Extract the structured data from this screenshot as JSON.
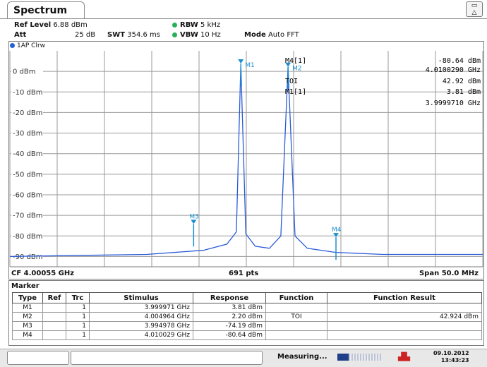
{
  "tab_title": "Spectrum",
  "corner_button_label": "△",
  "header": {
    "ref_level_label": "Ref Level",
    "ref_level_value": "6.88 dBm",
    "att_label": "Att",
    "att_value": "25 dB",
    "swt_label": "SWT",
    "swt_value": "354.6 ms",
    "rbw_label": "RBW",
    "rbw_value": "5 kHz",
    "vbw_label": "VBW",
    "vbw_value": "10 Hz",
    "mode_label": "Mode",
    "mode_value": "Auto FFT"
  },
  "trace_label": "1AP Clrw",
  "y_tick_labels": [
    "0 dBm",
    "-10 dBm",
    "-20 dBm",
    "-30 dBm",
    "-40 dBm",
    "-50 dBm",
    "-60 dBm",
    "-70 dBm",
    "-80 dBm",
    "-90 dBm"
  ],
  "marker_tags": [
    "M1",
    "M2",
    "M3",
    "M4"
  ],
  "marker_readout": {
    "m4_label": "M4[1]",
    "m4_level": "-80.64 dBm",
    "m4_freq": "4.0100290 GHz",
    "toi_label": "TOI",
    "toi_value": "42.92 dBm",
    "m1_label": "M1[1]",
    "m1_level": "3.81 dBm",
    "m1_freq": "3.9999710 GHz"
  },
  "footer": {
    "cf": "CF 4.00055 GHz",
    "pts": "691 pts",
    "span": "Span 50.0 MHz"
  },
  "marker_table": {
    "title": "Marker",
    "headers": [
      "Type",
      "Ref",
      "Trc",
      "Stimulus",
      "Response",
      "Function",
      "Function Result"
    ],
    "rows": [
      [
        "M1",
        "",
        "1",
        "3.999971 GHz",
        "3.81 dBm",
        "",
        ""
      ],
      [
        "M2",
        "",
        "1",
        "4.004964 GHz",
        "2.20 dBm",
        "TOI",
        "42.924 dBm"
      ],
      [
        "M3",
        "",
        "1",
        "3.994978 GHz",
        "-74.19 dBm",
        "",
        ""
      ],
      [
        "M4",
        "",
        "1",
        "4.010029 GHz",
        "-80.64 dBm",
        "",
        ""
      ]
    ]
  },
  "status": {
    "measuring": "Measuring...",
    "date": "09.10.2012",
    "time": "13:43:23"
  },
  "chart_data": {
    "type": "line",
    "x_range_ghz": [
      3.97555,
      4.02555
    ],
    "ylim": [
      -95,
      10
    ],
    "y_ticks": [
      0,
      -10,
      -20,
      -30,
      -40,
      -50,
      -60,
      -70,
      -80,
      -90
    ],
    "grid": true,
    "series": [
      {
        "x": [
          3.97555,
          3.99,
          3.996,
          3.9985,
          3.9995,
          3.99997,
          4.0005,
          4.0015,
          4.003,
          4.0042,
          4.00496,
          4.0057,
          4.007,
          4.01,
          4.015,
          4.02555
        ],
        "y": [
          -90,
          -89,
          -87,
          -84,
          -78,
          3.81,
          -79,
          -85,
          -86,
          -80,
          2.2,
          -80,
          -86,
          -88,
          -89,
          -89
        ]
      }
    ],
    "markers": [
      {
        "name": "M1",
        "x": 3.999971,
        "y": 3.81
      },
      {
        "name": "M2",
        "x": 4.004964,
        "y": 2.2
      },
      {
        "name": "M3",
        "x": 3.994978,
        "y": -74.19
      },
      {
        "name": "M4",
        "x": 4.010029,
        "y": -80.64
      }
    ]
  }
}
